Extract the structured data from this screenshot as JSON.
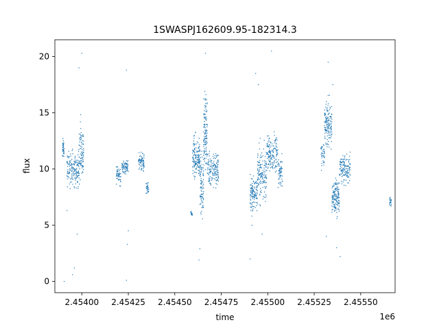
{
  "chart_data": {
    "type": "scatter",
    "title": "1SWASPJ162609.95-182314.3",
    "xlabel": "time",
    "ylabel": "flux",
    "x_offset_label": "1e6",
    "xlim": [
      2453830,
      2455660
    ],
    "ylim": [
      -1,
      21.5
    ],
    "x_ticks": [
      2453975,
      2454225,
      2454475,
      2454725,
      2454975,
      2455225,
      2455475
    ],
    "x_tick_labels": [
      "2.45400",
      "2.45425",
      "2.45450",
      "2.45475",
      "2.45500",
      "2.45525",
      "2.45550"
    ],
    "y_ticks": [
      0,
      5,
      10,
      15,
      20
    ],
    "y_tick_labels": [
      "0",
      "5",
      "10",
      "15",
      "20"
    ],
    "grid": false,
    "marker_color": "#1f77b4",
    "clusters": [
      {
        "x_start": 2453870,
        "x_end": 2453880,
        "y_center": 11.8,
        "y_spread": 0.8,
        "n": 40
      },
      {
        "x_start": 2453895,
        "x_end": 2453960,
        "y_center": 10.0,
        "y_spread": 1.5,
        "n": 160
      },
      {
        "x_start": 2453960,
        "x_end": 2453985,
        "y_center": 11.5,
        "y_spread": 2.5,
        "n": 90
      },
      {
        "x_start": 2454160,
        "x_end": 2454185,
        "y_center": 9.5,
        "y_spread": 0.8,
        "n": 50
      },
      {
        "x_start": 2454190,
        "x_end": 2454225,
        "y_center": 10.2,
        "y_spread": 0.6,
        "n": 70
      },
      {
        "x_start": 2454280,
        "x_end": 2454310,
        "y_center": 10.6,
        "y_spread": 0.8,
        "n": 70
      },
      {
        "x_start": 2454320,
        "x_end": 2454335,
        "y_center": 8.2,
        "y_spread": 0.5,
        "n": 30
      },
      {
        "x_start": 2454560,
        "x_end": 2454570,
        "y_center": 6.0,
        "y_spread": 0.2,
        "n": 15
      },
      {
        "x_start": 2454570,
        "x_end": 2454610,
        "y_center": 11.0,
        "y_spread": 1.8,
        "n": 150
      },
      {
        "x_start": 2454610,
        "x_end": 2454630,
        "y_center": 8.5,
        "y_spread": 2.5,
        "n": 90
      },
      {
        "x_start": 2454630,
        "x_end": 2454650,
        "y_center": 13.5,
        "y_spread": 3.0,
        "n": 120
      },
      {
        "x_start": 2454650,
        "x_end": 2454710,
        "y_center": 10.0,
        "y_spread": 1.6,
        "n": 150
      },
      {
        "x_start": 2454880,
        "x_end": 2454920,
        "y_center": 7.8,
        "y_spread": 1.5,
        "n": 120
      },
      {
        "x_start": 2454920,
        "x_end": 2454970,
        "y_center": 9.5,
        "y_spread": 2.2,
        "n": 150
      },
      {
        "x_start": 2454970,
        "x_end": 2455030,
        "y_center": 11.5,
        "y_spread": 1.5,
        "n": 150
      },
      {
        "x_start": 2455030,
        "x_end": 2455055,
        "y_center": 9.5,
        "y_spread": 1.5,
        "n": 60
      },
      {
        "x_start": 2455260,
        "x_end": 2455280,
        "y_center": 11.2,
        "y_spread": 1.0,
        "n": 40
      },
      {
        "x_start": 2455280,
        "x_end": 2455320,
        "y_center": 14.0,
        "y_spread": 1.8,
        "n": 150
      },
      {
        "x_start": 2455320,
        "x_end": 2455360,
        "y_center": 7.5,
        "y_spread": 1.5,
        "n": 150
      },
      {
        "x_start": 2455360,
        "x_end": 2455420,
        "y_center": 10.0,
        "y_spread": 1.3,
        "n": 140
      },
      {
        "x_start": 2455630,
        "x_end": 2455640,
        "y_center": 7.2,
        "y_spread": 0.6,
        "n": 20
      }
    ],
    "outliers": [
      [
        2453880,
        0.0
      ],
      [
        2453925,
        0.6
      ],
      [
        2453935,
        1.2
      ],
      [
        2453975,
        20.3
      ],
      [
        2453960,
        19.0
      ],
      [
        2453895,
        6.3
      ],
      [
        2453950,
        4.2
      ],
      [
        2454215,
        18.8
      ],
      [
        2454215,
        0.1
      ],
      [
        2454220,
        3.3
      ],
      [
        2454225,
        4.5
      ],
      [
        2454640,
        20.3
      ],
      [
        2454605,
        1.9
      ],
      [
        2454610,
        2.9
      ],
      [
        2454910,
        18.5
      ],
      [
        2454925,
        17.5
      ],
      [
        2454880,
        2.0
      ],
      [
        2454890,
        5.0
      ],
      [
        2454995,
        20.5
      ],
      [
        2454945,
        4.2
      ],
      [
        2455300,
        19.5
      ],
      [
        2455290,
        4.0
      ],
      [
        2455345,
        3.0
      ],
      [
        2455365,
        2.2
      ],
      [
        2455325,
        17.5
      ]
    ]
  }
}
